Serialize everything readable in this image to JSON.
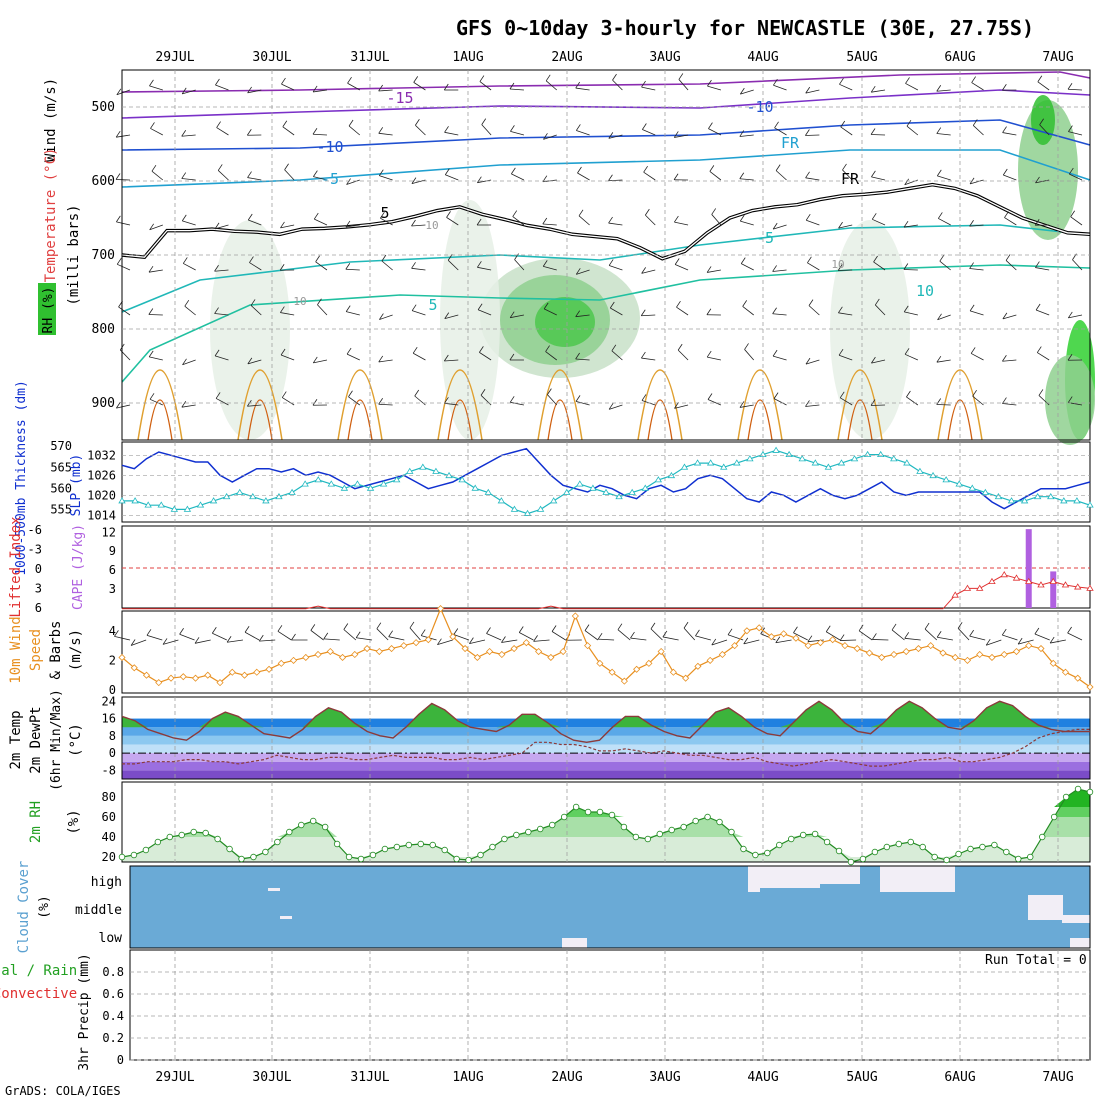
{
  "title": "GFS 0~10day 3-hourly for NEWCASTLE (30E, 27.75S)",
  "footer": "GrADS: COLA/IGES",
  "run_total_label": "Run Total = 0",
  "colors": {
    "axis": "#000000",
    "grid": "#a0a0a0",
    "temp_contour": "#0aa8b0",
    "slp": "#1030d0",
    "thickness": "#20b8c0",
    "wind10m": "#e89020",
    "lifted": "#e03030",
    "cape": "#b060e0",
    "temp_fill_top": "#22b422",
    "rh_fill": "#30d030",
    "cloud": "#6aaad6",
    "cloud_gap": "#f2eef6"
  },
  "chart_data": [
    {
      "type": "table",
      "panel": "upper-air",
      "title": "",
      "ylabel": "(milli bars)",
      "ylabel_parts": {
        "rh": "RH (%)",
        "temp": "Temperature (°C)",
        "wind": "Wind (m/s)"
      },
      "yticks": [
        500,
        600,
        700,
        800,
        900
      ],
      "ylim": [
        950,
        450
      ],
      "x_dates": [
        "29JUL",
        "30JUL",
        "31JUL",
        "1AUG",
        "2AUG",
        "3AUG",
        "4AUG",
        "5AUG",
        "6AUG",
        "7AUG"
      ],
      "contour_labels": [
        "-15",
        "-10",
        "-10",
        "-5",
        "5",
        "FR",
        "FR",
        "-5",
        "5",
        "10",
        "10",
        "10",
        "10"
      ],
      "freezing_level_mb": [
        700,
        703,
        667,
        667,
        665,
        668,
        669,
        672,
        665,
        664,
        662,
        659,
        655,
        648,
        640,
        635,
        645,
        652,
        660,
        665,
        672,
        675,
        678,
        690,
        705,
        695,
        670,
        650,
        640,
        635,
        632,
        625,
        620,
        618,
        615,
        610,
        605,
        610,
        620,
        635,
        650,
        660,
        670,
        672
      ]
    },
    {
      "type": "line",
      "panel": "slp-thickness",
      "ylabel_left": "1000-500mb Thickness (dm)",
      "ylabel_right": "SLP (mb)",
      "yticks_left": [
        "570",
        "565",
        "560",
        "555"
      ],
      "yticks_right": [
        "1032",
        "1026",
        "1020",
        "1014"
      ],
      "ylim_left": [
        552,
        571
      ],
      "ylim_right": [
        1012,
        1036
      ],
      "series": [
        {
          "name": "SLP (mb)",
          "values": [
            1029,
            1028,
            1031,
            1033,
            1032,
            1031,
            1030,
            1030,
            1026,
            1024,
            1026,
            1028,
            1028,
            1027,
            1028,
            1026,
            1027,
            1026,
            1024,
            1022,
            1023,
            1024,
            1025,
            1026,
            1024,
            1022,
            1023,
            1024,
            1026,
            1028,
            1030,
            1032,
            1033,
            1034,
            1030,
            1026,
            1023,
            1022,
            1021,
            1023,
            1022,
            1020,
            1019,
            1022,
            1023,
            1021,
            1022,
            1025,
            1026,
            1025,
            1022,
            1019,
            1018,
            1021,
            1020,
            1018,
            1020,
            1022,
            1020,
            1019,
            1020,
            1022,
            1024,
            1021,
            1020,
            1021,
            1021,
            1021,
            1021,
            1021,
            1021,
            1018,
            1016,
            1018,
            1020,
            1022,
            1022,
            1022,
            1023,
            1024
          ]
        },
        {
          "name": "Thickness (dm)",
          "values": [
            557,
            557,
            556,
            556,
            555,
            555,
            556,
            557,
            558,
            559,
            558,
            557,
            558,
            559,
            561,
            562,
            561,
            560,
            561,
            560,
            561,
            562,
            564,
            565,
            564,
            563,
            562,
            560,
            559,
            557,
            555,
            554,
            555,
            557,
            559,
            561,
            560,
            559,
            558,
            559,
            560,
            562,
            563,
            565,
            566,
            566,
            565,
            566,
            567,
            568,
            569,
            568,
            567,
            566,
            565,
            566,
            567,
            568,
            568,
            567,
            566,
            564,
            563,
            562,
            561,
            560,
            559,
            558,
            557,
            557,
            558,
            558,
            557,
            557,
            556
          ]
        }
      ]
    },
    {
      "type": "bar",
      "panel": "cape-lifted",
      "ylabel_left": "Lifted Index",
      "ylabel_right": "CAPE (J/kg)",
      "yticks_left": [
        "-6",
        "-3",
        "0",
        "3",
        "6"
      ],
      "yticks_right": [
        "12",
        "9",
        "6",
        "3"
      ],
      "ylim_right": [
        0,
        13
      ],
      "cape_bars": [
        {
          "x_index": 74,
          "value": 12.5
        },
        {
          "x_index": 76,
          "value": 5.8
        }
      ],
      "lifted_index": [
        6,
        6,
        6,
        6,
        6,
        6,
        6,
        6,
        6,
        6,
        6,
        6,
        6,
        6,
        6,
        6,
        5.6,
        6,
        6,
        6,
        6,
        6,
        6,
        6,
        6,
        6,
        6,
        6,
        6,
        6,
        6,
        6,
        6,
        6,
        6,
        5.6,
        6,
        6,
        6,
        6,
        6,
        6,
        6,
        6,
        6,
        6,
        6,
        6,
        6,
        6,
        6,
        6,
        6,
        6,
        6,
        6,
        6,
        6,
        6,
        6,
        6,
        6,
        6,
        6,
        6,
        6,
        6,
        6,
        4,
        3,
        3,
        2,
        1,
        1.5,
        2,
        2.5,
        2,
        2.5,
        2.8,
        3
      ]
    },
    {
      "type": "line",
      "panel": "wind10m",
      "ylabel": "10m Wind Speed (m/s) & Barbs",
      "yticks": [
        "0",
        "2",
        "4"
      ],
      "ylim": [
        0,
        5
      ],
      "series": [
        {
          "name": "10m wind speed",
          "values": [
            2.2,
            1.5,
            1.0,
            0.5,
            0.8,
            0.9,
            0.8,
            1.0,
            0.5,
            1.2,
            1.0,
            1.2,
            1.4,
            1.8,
            2.0,
            2.2,
            2.4,
            2.6,
            2.2,
            2.4,
            2.8,
            2.6,
            2.8,
            3.0,
            3.2,
            3.4,
            5.5,
            3.6,
            2.8,
            2.2,
            2.6,
            2.4,
            2.8,
            3.2,
            2.6,
            2.2,
            2.6,
            5.0,
            3.0,
            1.8,
            1.2,
            0.6,
            1.4,
            1.8,
            2.6,
            1.2,
            0.8,
            1.6,
            2.0,
            2.4,
            3.0,
            4.0,
            4.2,
            3.6,
            3.8,
            3.5,
            3.0,
            3.2,
            3.4,
            3.0,
            2.8,
            2.5,
            2.2,
            2.4,
            2.6,
            2.8,
            3.0,
            2.5,
            2.2,
            2.0,
            2.4,
            2.2,
            2.4,
            2.6,
            3.0,
            2.8,
            1.8,
            1.2,
            0.8,
            0.2
          ]
        }
      ]
    },
    {
      "type": "area",
      "panel": "temp-dewpt",
      "ylabel": "2m Temp 2m DewPt (6hr Min/Max) (°C)",
      "yticks": [
        "24",
        "16",
        "8",
        "0",
        "-8"
      ],
      "ylim": [
        -12,
        26
      ],
      "series": [
        {
          "name": "2m Temp",
          "values": [
            17,
            15,
            11,
            9,
            7,
            6,
            10,
            16,
            19,
            17,
            13,
            9,
            8,
            7,
            11,
            17,
            21,
            19,
            14,
            10,
            8,
            7,
            12,
            18,
            23,
            20,
            15,
            12,
            11,
            10,
            13,
            18,
            18,
            14,
            9,
            6,
            5,
            6,
            12,
            17,
            17,
            13,
            10,
            8,
            7,
            13,
            19,
            21,
            17,
            12,
            9,
            8,
            14,
            20,
            24,
            20,
            14,
            10,
            9,
            14,
            20,
            24,
            21,
            16,
            12,
            11,
            15,
            21,
            24,
            22,
            17,
            13,
            11,
            10,
            10,
            10
          ]
        },
        {
          "name": "2m DewPt",
          "values": [
            -5,
            -5,
            -4,
            -4,
            -4,
            -3,
            -3,
            -4,
            -4,
            -5,
            -4,
            -3,
            -1,
            -2,
            -3,
            -3,
            -2,
            -2,
            -3,
            -3,
            -2,
            -1,
            -2,
            -2,
            -2,
            -3,
            -3,
            -2,
            -3,
            -2,
            -1,
            0,
            5,
            5,
            4,
            4,
            3,
            1,
            1,
            2,
            1,
            0,
            1,
            0,
            -1,
            -1,
            -2,
            -3,
            -3,
            -2,
            -4,
            -5,
            -6,
            -5,
            -4,
            -3,
            -4,
            -5,
            -6,
            -6,
            -5,
            -4,
            -3,
            -3,
            -2,
            -4,
            -4,
            -3,
            -2,
            0,
            3,
            7,
            9,
            10,
            11,
            11
          ]
        }
      ]
    },
    {
      "type": "area",
      "panel": "rh2m",
      "ylabel": "2m RH (%)",
      "yticks": [
        "80",
        "60",
        "40",
        "20"
      ],
      "ylim": [
        15,
        95
      ],
      "series": [
        {
          "name": "2m RH",
          "values": [
            20,
            22,
            27,
            35,
            40,
            42,
            45,
            44,
            38,
            28,
            18,
            20,
            25,
            35,
            45,
            52,
            56,
            50,
            33,
            20,
            18,
            22,
            28,
            30,
            32,
            33,
            32,
            27,
            18,
            17,
            22,
            30,
            38,
            42,
            45,
            48,
            52,
            60,
            70,
            65,
            65,
            62,
            50,
            40,
            38,
            43,
            47,
            50,
            56,
            60,
            55,
            45,
            28,
            22,
            24,
            32,
            38,
            42,
            43,
            35,
            26,
            15,
            18,
            25,
            30,
            33,
            35,
            30,
            20,
            17,
            23,
            28,
            30,
            32,
            25,
            18,
            20,
            40,
            60,
            80,
            88,
            85
          ]
        }
      ]
    },
    {
      "type": "heatmap",
      "panel": "cloud-cover",
      "ylabel": "Cloud Cover (%)",
      "levels": [
        "high",
        "middle",
        "low"
      ]
    },
    {
      "type": "bar",
      "panel": "precip",
      "ylabel_left": "Total / Rain Convective",
      "ylabel_left_parts": {
        "total_rain": "tal / Rain",
        "convective": "Convective"
      },
      "ylabel": "3hr Precip (mm)",
      "yticks": [
        "0.8",
        "0.6",
        "0.4",
        "0.2",
        "0"
      ],
      "ylim": [
        0,
        1
      ],
      "values": []
    }
  ]
}
